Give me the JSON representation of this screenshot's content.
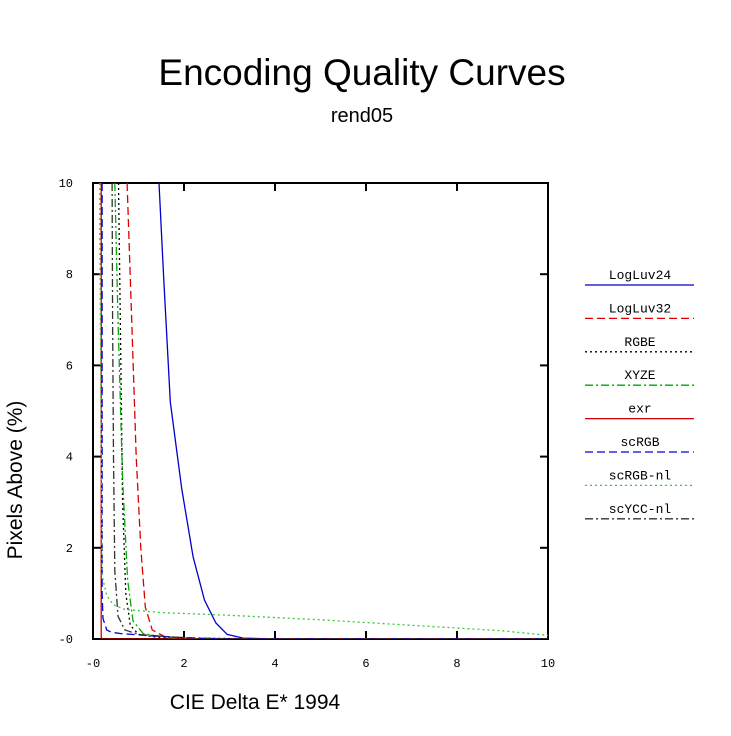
{
  "chart_data": {
    "type": "line",
    "title": "Encoding Quality Curves",
    "subtitle": "rend05",
    "xlabel": "CIE Delta E* 1994",
    "ylabel": "Pixels Above (%)",
    "xlim": [
      0,
      10
    ],
    "ylim": [
      0,
      10
    ],
    "x_ticks": [
      0,
      2,
      4,
      6,
      8,
      10
    ],
    "y_ticks": [
      0,
      2,
      4,
      6,
      8,
      10
    ],
    "x_tick_labels": [
      "-0",
      "2",
      "4",
      "6",
      "8",
      "10"
    ],
    "y_tick_labels": [
      "-0",
      "2",
      "4",
      "6",
      "8",
      "10"
    ],
    "grid": false,
    "legend_position": "right",
    "series": [
      {
        "name": "LogLuv24",
        "color": "#0000cc",
        "dash": "solid",
        "points": [
          [
            1.45,
            10
          ],
          [
            1.55,
            8.0
          ],
          [
            1.7,
            5.2
          ],
          [
            1.95,
            3.3
          ],
          [
            2.2,
            1.8
          ],
          [
            2.45,
            0.85
          ],
          [
            2.7,
            0.35
          ],
          [
            2.95,
            0.1
          ],
          [
            3.3,
            0.02
          ],
          [
            4.0,
            0
          ],
          [
            10,
            0
          ]
        ]
      },
      {
        "name": "LogLuv32",
        "color": "#dd0000",
        "dash": "dashed",
        "points": [
          [
            0.75,
            10
          ],
          [
            0.85,
            7.0
          ],
          [
            0.95,
            4.0
          ],
          [
            1.05,
            2.0
          ],
          [
            1.15,
            0.7
          ],
          [
            1.3,
            0.2
          ],
          [
            1.6,
            0.04
          ],
          [
            2.2,
            0
          ],
          [
            10,
            0
          ]
        ]
      },
      {
        "name": "RGBE",
        "color": "#000000",
        "dash": "dotted",
        "points": [
          [
            0.56,
            10
          ],
          [
            0.6,
            7.0
          ],
          [
            0.65,
            3.0
          ],
          [
            0.72,
            1.0
          ],
          [
            0.82,
            0.3
          ],
          [
            1.0,
            0.1
          ],
          [
            1.4,
            0.04
          ],
          [
            2.2,
            0.02
          ],
          [
            4.0,
            0
          ],
          [
            10,
            0
          ]
        ]
      },
      {
        "name": "XYZE",
        "color": "#00aa00",
        "dash": "dash-dot",
        "points": [
          [
            0.48,
            10
          ],
          [
            0.55,
            7.0
          ],
          [
            0.65,
            3.5
          ],
          [
            0.76,
            1.3
          ],
          [
            0.88,
            0.4
          ],
          [
            1.1,
            0.12
          ],
          [
            1.6,
            0.03
          ],
          [
            2.5,
            0
          ],
          [
            10,
            0
          ]
        ]
      },
      {
        "name": "exr",
        "color": "#cc0000",
        "dash": "solid",
        "points": [
          [
            0.18,
            10
          ],
          [
            0.18,
            0.05
          ],
          [
            0.2,
            0
          ],
          [
            10,
            0
          ]
        ]
      },
      {
        "name": "scRGB",
        "color": "#0000dd",
        "dash": "dashed",
        "points": [
          [
            0.2,
            10
          ],
          [
            0.2,
            1.0
          ],
          [
            0.22,
            0.45
          ],
          [
            0.3,
            0.2
          ],
          [
            0.4,
            0.15
          ],
          [
            0.6,
            0.12
          ],
          [
            1.0,
            0.09
          ],
          [
            1.6,
            0.05
          ],
          [
            2.2,
            0.02
          ],
          [
            3.0,
            0
          ],
          [
            10,
            0
          ]
        ]
      },
      {
        "name": "scRGB-nl",
        "color": "#33cc33",
        "dash": "dotted",
        "points": [
          [
            0.15,
            10
          ],
          [
            0.15,
            9.0
          ],
          [
            0.2,
            1.4
          ],
          [
            0.3,
            0.95
          ],
          [
            0.45,
            0.75
          ],
          [
            0.7,
            0.65
          ],
          [
            1.5,
            0.58
          ],
          [
            3.0,
            0.52
          ],
          [
            5.0,
            0.42
          ],
          [
            7.0,
            0.3
          ],
          [
            9.0,
            0.18
          ],
          [
            10.0,
            0.08
          ]
        ]
      },
      {
        "name": "scYCC-nl",
        "color": "#333333",
        "dash": "dash-dot",
        "points": [
          [
            0.42,
            10
          ],
          [
            0.43,
            7.0
          ],
          [
            0.45,
            4.0
          ],
          [
            0.48,
            1.5
          ],
          [
            0.55,
            0.5
          ],
          [
            0.7,
            0.2
          ],
          [
            1.0,
            0.1
          ],
          [
            1.8,
            0.04
          ],
          [
            3.0,
            0
          ],
          [
            10,
            0
          ]
        ]
      }
    ]
  }
}
